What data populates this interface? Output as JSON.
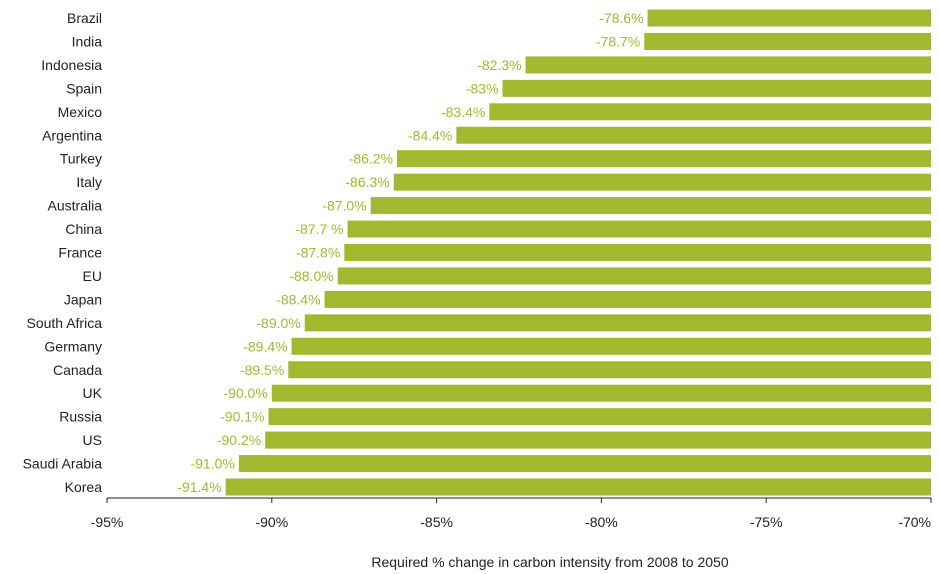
{
  "chart_data": {
    "type": "bar",
    "orientation": "horizontal",
    "categories": [
      "Brazil",
      "India",
      "Indonesia",
      "Spain",
      "Mexico",
      "Argentina",
      "Turkey",
      "Italy",
      "Australia",
      "China",
      "France",
      "EU",
      "Japan",
      "South Africa",
      "Germany",
      "Canada",
      "UK",
      "Russia",
      "US",
      "Saudi Arabia",
      "Korea"
    ],
    "values": [
      -78.6,
      -78.7,
      -82.3,
      -83,
      -83.4,
      -84.4,
      -86.2,
      -86.3,
      -87.0,
      -87.7,
      -87.8,
      -88.0,
      -88.4,
      -89.0,
      -89.4,
      -89.5,
      -90.0,
      -90.1,
      -90.2,
      -91.0,
      -91.4
    ],
    "data_labels": [
      "-78.6%",
      "-78.7%",
      "-82.3%",
      "-83%",
      "-83.4%",
      "-84.4%",
      "-86.2%",
      "-86.3%",
      "-87.0%",
      "-87.7 %",
      "-87.8%",
      "-88.0%",
      "-88.4%",
      "-89.0%",
      "-89.4%",
      "-89.5%",
      "-90.0%",
      "-90.1%",
      "-90.2%",
      "-91.0%",
      "-91.4%"
    ],
    "xlim": [
      -95,
      -70
    ],
    "xticks": [
      -95,
      -90,
      -85,
      -80,
      -75,
      -70
    ],
    "xtick_labels": [
      "-95%",
      "-90%",
      "-85%",
      "-80%",
      "-75%",
      "-70%"
    ],
    "xlabel": "Required % change in carbon intensity from 2008 to 2050",
    "bar_color": "#a2b82e",
    "label_color": "#a2b82e",
    "grid": false
  }
}
